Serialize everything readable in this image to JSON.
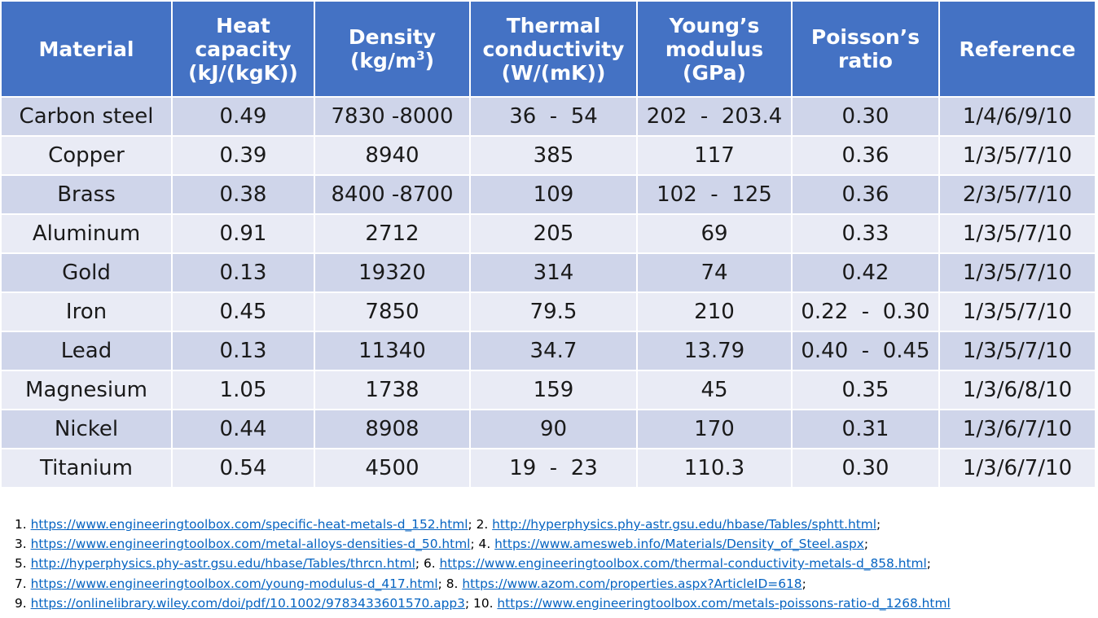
{
  "table": {
    "headers": [
      {
        "line1": "Material",
        "line2": "",
        "line3": ""
      },
      {
        "line1": "Heat",
        "line2": "capacity",
        "line3": "(kJ/(kgK))"
      },
      {
        "line1": "Density",
        "line2": "(kg/m",
        "sup": "3",
        "line2b": ")"
      },
      {
        "line1": "Thermal",
        "line2": "conductivity",
        "line3": "(W/(mK))"
      },
      {
        "line1": "Young’s",
        "line2": "modulus",
        "line3": "(GPa)"
      },
      {
        "line1": "Poisson’s",
        "line2": "ratio",
        "line3": ""
      },
      {
        "line1": "Reference",
        "line2": "",
        "line3": ""
      }
    ],
    "rows": [
      [
        "Carbon steel",
        "0.49",
        "7830 -8000",
        "36  -  54",
        "202  -  203.4",
        "0.30",
        "1/4/6/9/10"
      ],
      [
        "Copper",
        "0.39",
        "8940",
        "385",
        "117",
        "0.36",
        "1/3/5/7/10"
      ],
      [
        "Brass",
        "0.38",
        "8400 -8700",
        "109",
        "102  -  125",
        "0.36",
        "2/3/5/7/10"
      ],
      [
        "Aluminum",
        "0.91",
        "2712",
        "205",
        "69",
        "0.33",
        "1/3/5/7/10"
      ],
      [
        "Gold",
        "0.13",
        "19320",
        "314",
        "74",
        "0.42",
        "1/3/5/7/10"
      ],
      [
        "Iron",
        "0.45",
        "7850",
        "79.5",
        "210",
        "0.22  -  0.30",
        "1/3/5/7/10"
      ],
      [
        "Lead",
        "0.13",
        "11340",
        "34.7",
        "13.79",
        "0.40  -  0.45",
        "1/3/5/7/10"
      ],
      [
        "Magnesium",
        "1.05",
        "1738",
        "159",
        "45",
        "0.35",
        "1/3/6/8/10"
      ],
      [
        "Nickel",
        "0.44",
        "8908",
        "90",
        "170",
        "0.31",
        "1/3/6/7/10"
      ],
      [
        "Titanium",
        "0.54",
        "4500",
        "19  -  23",
        "110.3",
        "0.30",
        "1/3/6/7/10"
      ]
    ]
  },
  "references": [
    [
      {
        "num": "1. ",
        "url": "https://www.engineeringtoolbox.com/specific-heat-metals-d_152.html",
        "sep": "; "
      },
      {
        "num": "2. ",
        "url": "http://hyperphysics.phy-astr.gsu.edu/hbase/Tables/sphtt.html",
        "sep": ";"
      }
    ],
    [
      {
        "num": "3. ",
        "url": "https://www.engineeringtoolbox.com/metal-alloys-densities-d_50.html",
        "sep": "; "
      },
      {
        "num": "4. ",
        "url": "https://www.amesweb.info/Materials/Density_of_Steel.aspx",
        "sep": ";"
      }
    ],
    [
      {
        "num": "5. ",
        "url": "http://hyperphysics.phy-astr.gsu.edu/hbase/Tables/thrcn.html",
        "sep": "; "
      },
      {
        "num": "6. ",
        "url": "https://www.engineeringtoolbox.com/thermal-conductivity-metals-d_858.html",
        "sep": ";"
      }
    ],
    [
      {
        "num": "7. ",
        "url": "https://www.engineeringtoolbox.com/young-modulus-d_417.html",
        "sep": "; "
      },
      {
        "num": "8. ",
        "url": "https://www.azom.com/properties.aspx?ArticleID=618",
        "sep": ";"
      }
    ],
    [
      {
        "num": "9. ",
        "url": "https://onlinelibrary.wiley.com/doi/pdf/10.1002/9783433601570.app3",
        "sep": "; "
      },
      {
        "num": "10. ",
        "url": "https://www.engineeringtoolbox.com/metals-poissons-ratio-d_1268.html",
        "sep": ""
      }
    ]
  ]
}
